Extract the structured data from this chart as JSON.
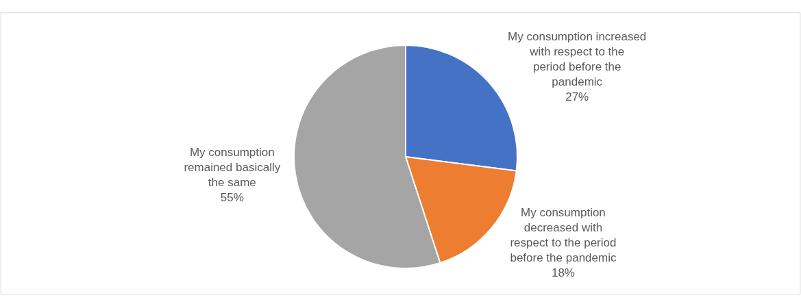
{
  "chart_data": {
    "type": "pie",
    "categories": [
      "My consumption increased with respect to the period before the pandemic",
      "My consumption decreased with respect to the period before the pandemic",
      "My consumption remained basically the same"
    ],
    "values": [
      27,
      18,
      55
    ],
    "value_labels": [
      "27%",
      "18%",
      "55%"
    ],
    "colors": [
      "#4472c4",
      "#ed7d31",
      "#a5a5a5"
    ],
    "legend": false
  }
}
